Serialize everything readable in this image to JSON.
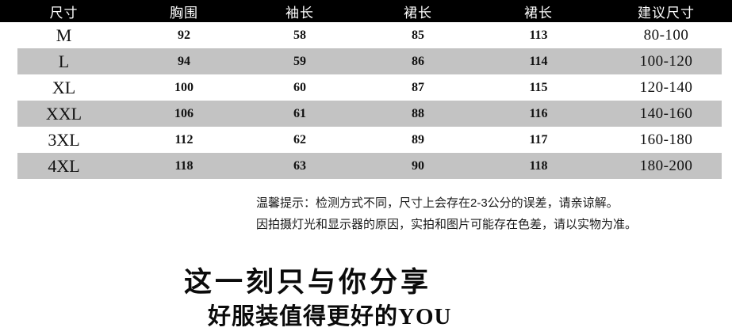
{
  "table": {
    "headers": [
      "尺寸",
      "胸围",
      "袖长",
      "裙长",
      "裙长",
      "建议尺寸"
    ],
    "rows": [
      {
        "size": "M",
        "bust": "92",
        "sleeve": "58",
        "skirt1": "85",
        "skirt2": "113",
        "suggested": "80-100"
      },
      {
        "size": "L",
        "bust": "94",
        "sleeve": "59",
        "skirt1": "86",
        "skirt2": "114",
        "suggested": "100-120"
      },
      {
        "size": "XL",
        "bust": "100",
        "sleeve": "60",
        "skirt1": "87",
        "skirt2": "115",
        "suggested": "120-140"
      },
      {
        "size": "XXL",
        "bust": "106",
        "sleeve": "61",
        "skirt1": "88",
        "skirt2": "116",
        "suggested": "140-160"
      },
      {
        "size": "3XL",
        "bust": "112",
        "sleeve": "62",
        "skirt1": "89",
        "skirt2": "117",
        "suggested": "160-180"
      },
      {
        "size": "4XL",
        "bust": "118",
        "sleeve": "63",
        "skirt1": "90",
        "skirt2": "118",
        "suggested": "180-200"
      }
    ]
  },
  "notes": {
    "line1": "温馨提示：检测方式不同，尺寸上会存在2-3公分的误差，请亲谅解。",
    "line2": "因拍摄灯光和显示器的原因，实拍和图片可能存在色差，请以实物为准。"
  },
  "slogan": {
    "line1": "这一刻只与你分享",
    "line2": "好服装值得更好的YOU"
  },
  "colors": {
    "header_bg": "#000000",
    "header_text": "#ffffff",
    "stripe": "#c3c3c3",
    "text": "#111111"
  }
}
